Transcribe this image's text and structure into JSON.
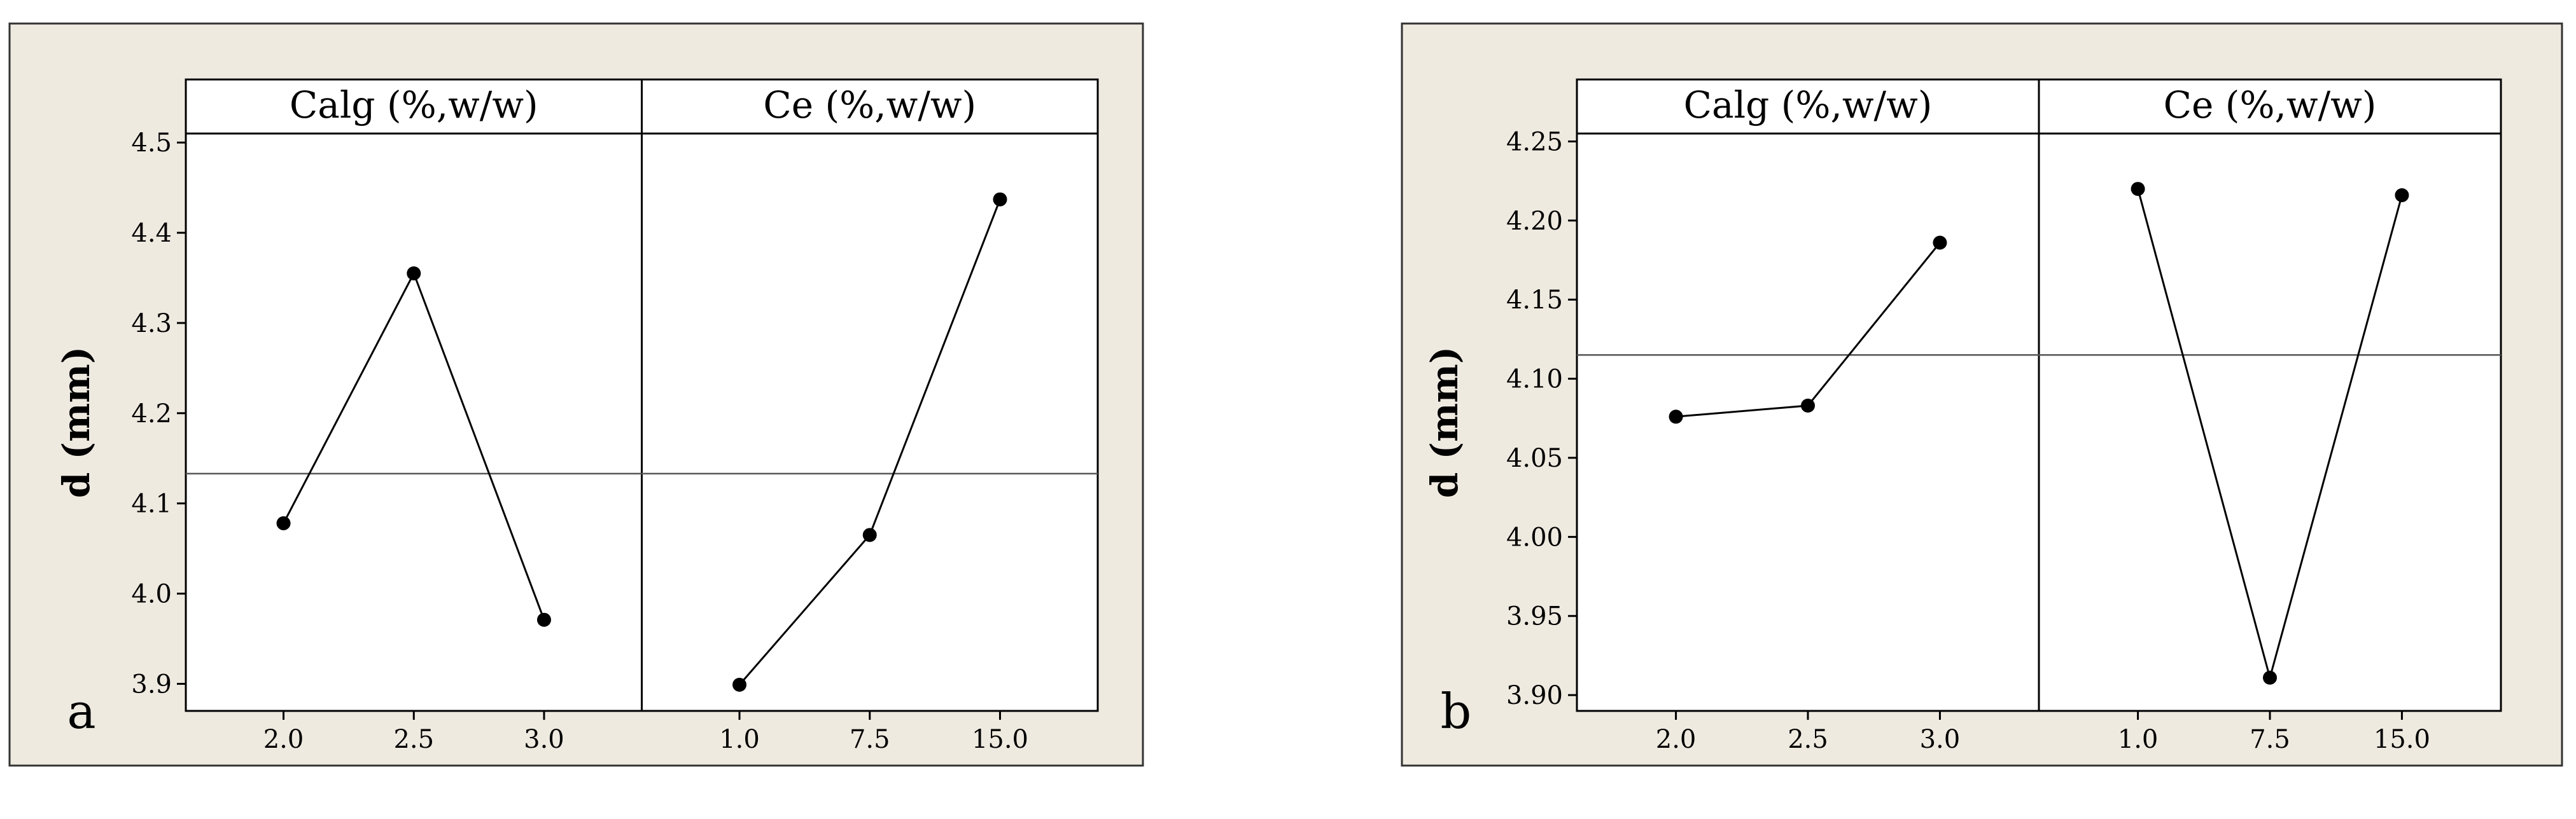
{
  "background": "#efeae0",
  "plot_background": "#ffffff",
  "line_color": "#000000",
  "chart_data": [
    {
      "type": "line",
      "panel_label": "a",
      "ylabel": "d (mm)",
      "ylim": [
        3.87,
        4.51
      ],
      "yticks": [
        "3.9",
        "4.0",
        "4.1",
        "4.2",
        "4.3",
        "4.4",
        "4.5"
      ],
      "reference_line": 4.133,
      "grid": false,
      "panels": [
        {
          "title": "Calg (%,w/w)",
          "categories": [
            "2.0",
            "2.5",
            "3.0"
          ],
          "values": [
            4.078,
            4.355,
            3.971
          ]
        },
        {
          "title": "Ce (%,w/w)",
          "categories": [
            "1.0",
            "7.5",
            "15.0"
          ],
          "values": [
            3.899,
            4.065,
            4.437
          ]
        }
      ]
    },
    {
      "type": "line",
      "panel_label": "b",
      "ylabel": "d (mm)",
      "ylim": [
        3.89,
        4.255
      ],
      "yticks": [
        "3.90",
        "3.95",
        "4.00",
        "4.05",
        "4.10",
        "4.15",
        "4.20",
        "4.25"
      ],
      "reference_line": 4.115,
      "grid": false,
      "panels": [
        {
          "title": "Calg (%,w/w)",
          "categories": [
            "2.0",
            "2.5",
            "3.0"
          ],
          "values": [
            4.076,
            4.083,
            4.186
          ]
        },
        {
          "title": "Ce (%,w/w)",
          "categories": [
            "1.0",
            "7.5",
            "15.0"
          ],
          "values": [
            4.22,
            3.911,
            4.216
          ]
        }
      ]
    }
  ]
}
